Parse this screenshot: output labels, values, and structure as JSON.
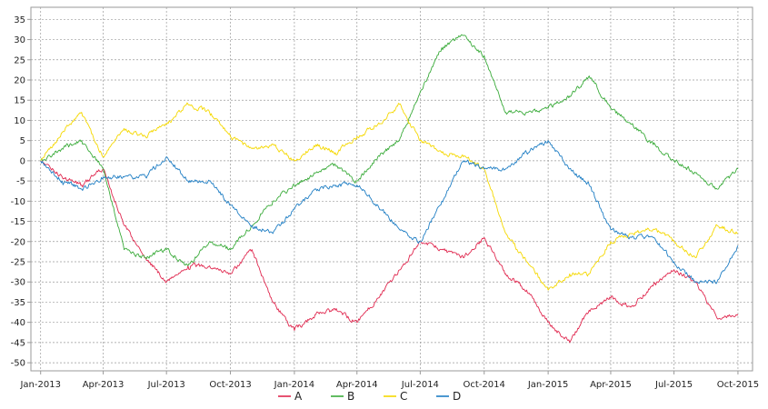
{
  "chart_data": {
    "type": "line",
    "x_tick_labels": [
      "Jan-2013",
      "Apr-2013",
      "Jul-2013",
      "Oct-2013",
      "Jan-2014",
      "Apr-2014",
      "Jul-2014",
      "Oct-2014",
      "Jan-2015",
      "Apr-2015",
      "Jul-2015",
      "Oct-2015"
    ],
    "x_ticks": [
      "2013-01-01",
      "2013-04-01",
      "2013-07-01",
      "2013-10-01",
      "2014-01-01",
      "2014-04-01",
      "2014-07-01",
      "2014-10-01",
      "2015-01-01",
      "2015-04-01",
      "2015-07-01",
      "2015-10-01"
    ],
    "xlim": [
      "2012-12-18",
      "2015-10-22"
    ],
    "ylim": [
      -52,
      38
    ],
    "y_ticks": [
      -50,
      -45,
      -40,
      -35,
      -30,
      -25,
      -20,
      -15,
      -10,
      -5,
      0,
      5,
      10,
      15,
      20,
      25,
      30,
      35
    ],
    "grid": true,
    "legend_position": "bottom-center",
    "x": [
      "2013-01-01",
      "2013-02-01",
      "2013-03-01",
      "2013-04-01",
      "2013-05-01",
      "2013-06-01",
      "2013-07-01",
      "2013-08-01",
      "2013-09-01",
      "2013-10-01",
      "2013-11-01",
      "2013-12-01",
      "2014-01-01",
      "2014-02-01",
      "2014-03-01",
      "2014-04-01",
      "2014-05-01",
      "2014-06-01",
      "2014-07-01",
      "2014-08-01",
      "2014-09-01",
      "2014-10-01",
      "2014-11-01",
      "2014-12-01",
      "2015-01-01",
      "2015-02-01",
      "2015-03-01",
      "2015-04-01",
      "2015-05-01",
      "2015-06-01",
      "2015-07-01",
      "2015-08-01",
      "2015-09-01",
      "2015-10-01"
    ],
    "series": [
      {
        "name": "A",
        "color": "#e0284f",
        "values": [
          0,
          -4,
          -6,
          -2,
          -16,
          -24,
          -30,
          -26,
          -26,
          -28,
          -22,
          -35,
          -42,
          -38,
          -37,
          -40,
          -34,
          -27,
          -20,
          -22,
          -24,
          -19,
          -28,
          -32,
          -40,
          -45,
          -37,
          -34,
          -36,
          -31,
          -27,
          -30,
          -39,
          -38
        ]
      },
      {
        "name": "B",
        "color": "#3aab3a",
        "values": [
          0,
          3,
          5,
          -2,
          -22,
          -24,
          -22,
          -26,
          -20,
          -22,
          -16,
          -10,
          -6,
          -3,
          -1,
          -5,
          1,
          5,
          17,
          28,
          31,
          26,
          12,
          12,
          13,
          16,
          21,
          13,
          9,
          4,
          0,
          -3,
          -7,
          -2
        ]
      },
      {
        "name": "C",
        "color": "#f5d800",
        "values": [
          0,
          7,
          12,
          1,
          8,
          6,
          9,
          14,
          12,
          6,
          3,
          4,
          0,
          4,
          2,
          6,
          9,
          14,
          5,
          2,
          1,
          -2,
          -18,
          -25,
          -32,
          -28,
          -28,
          -20,
          -18,
          -17,
          -20,
          -24,
          -16,
          -18
        ]
      },
      {
        "name": "D",
        "color": "#1f7ec4",
        "values": [
          0,
          -5,
          -7,
          -4,
          -4,
          -4,
          1,
          -5,
          -5,
          -11,
          -16,
          -18,
          -12,
          -7,
          -6,
          -6,
          -11,
          -17,
          -20,
          -10,
          0,
          -2,
          -2,
          2,
          5,
          -2,
          -6,
          -17,
          -19,
          -19,
          -25,
          -30,
          -30,
          -21
        ]
      }
    ]
  }
}
